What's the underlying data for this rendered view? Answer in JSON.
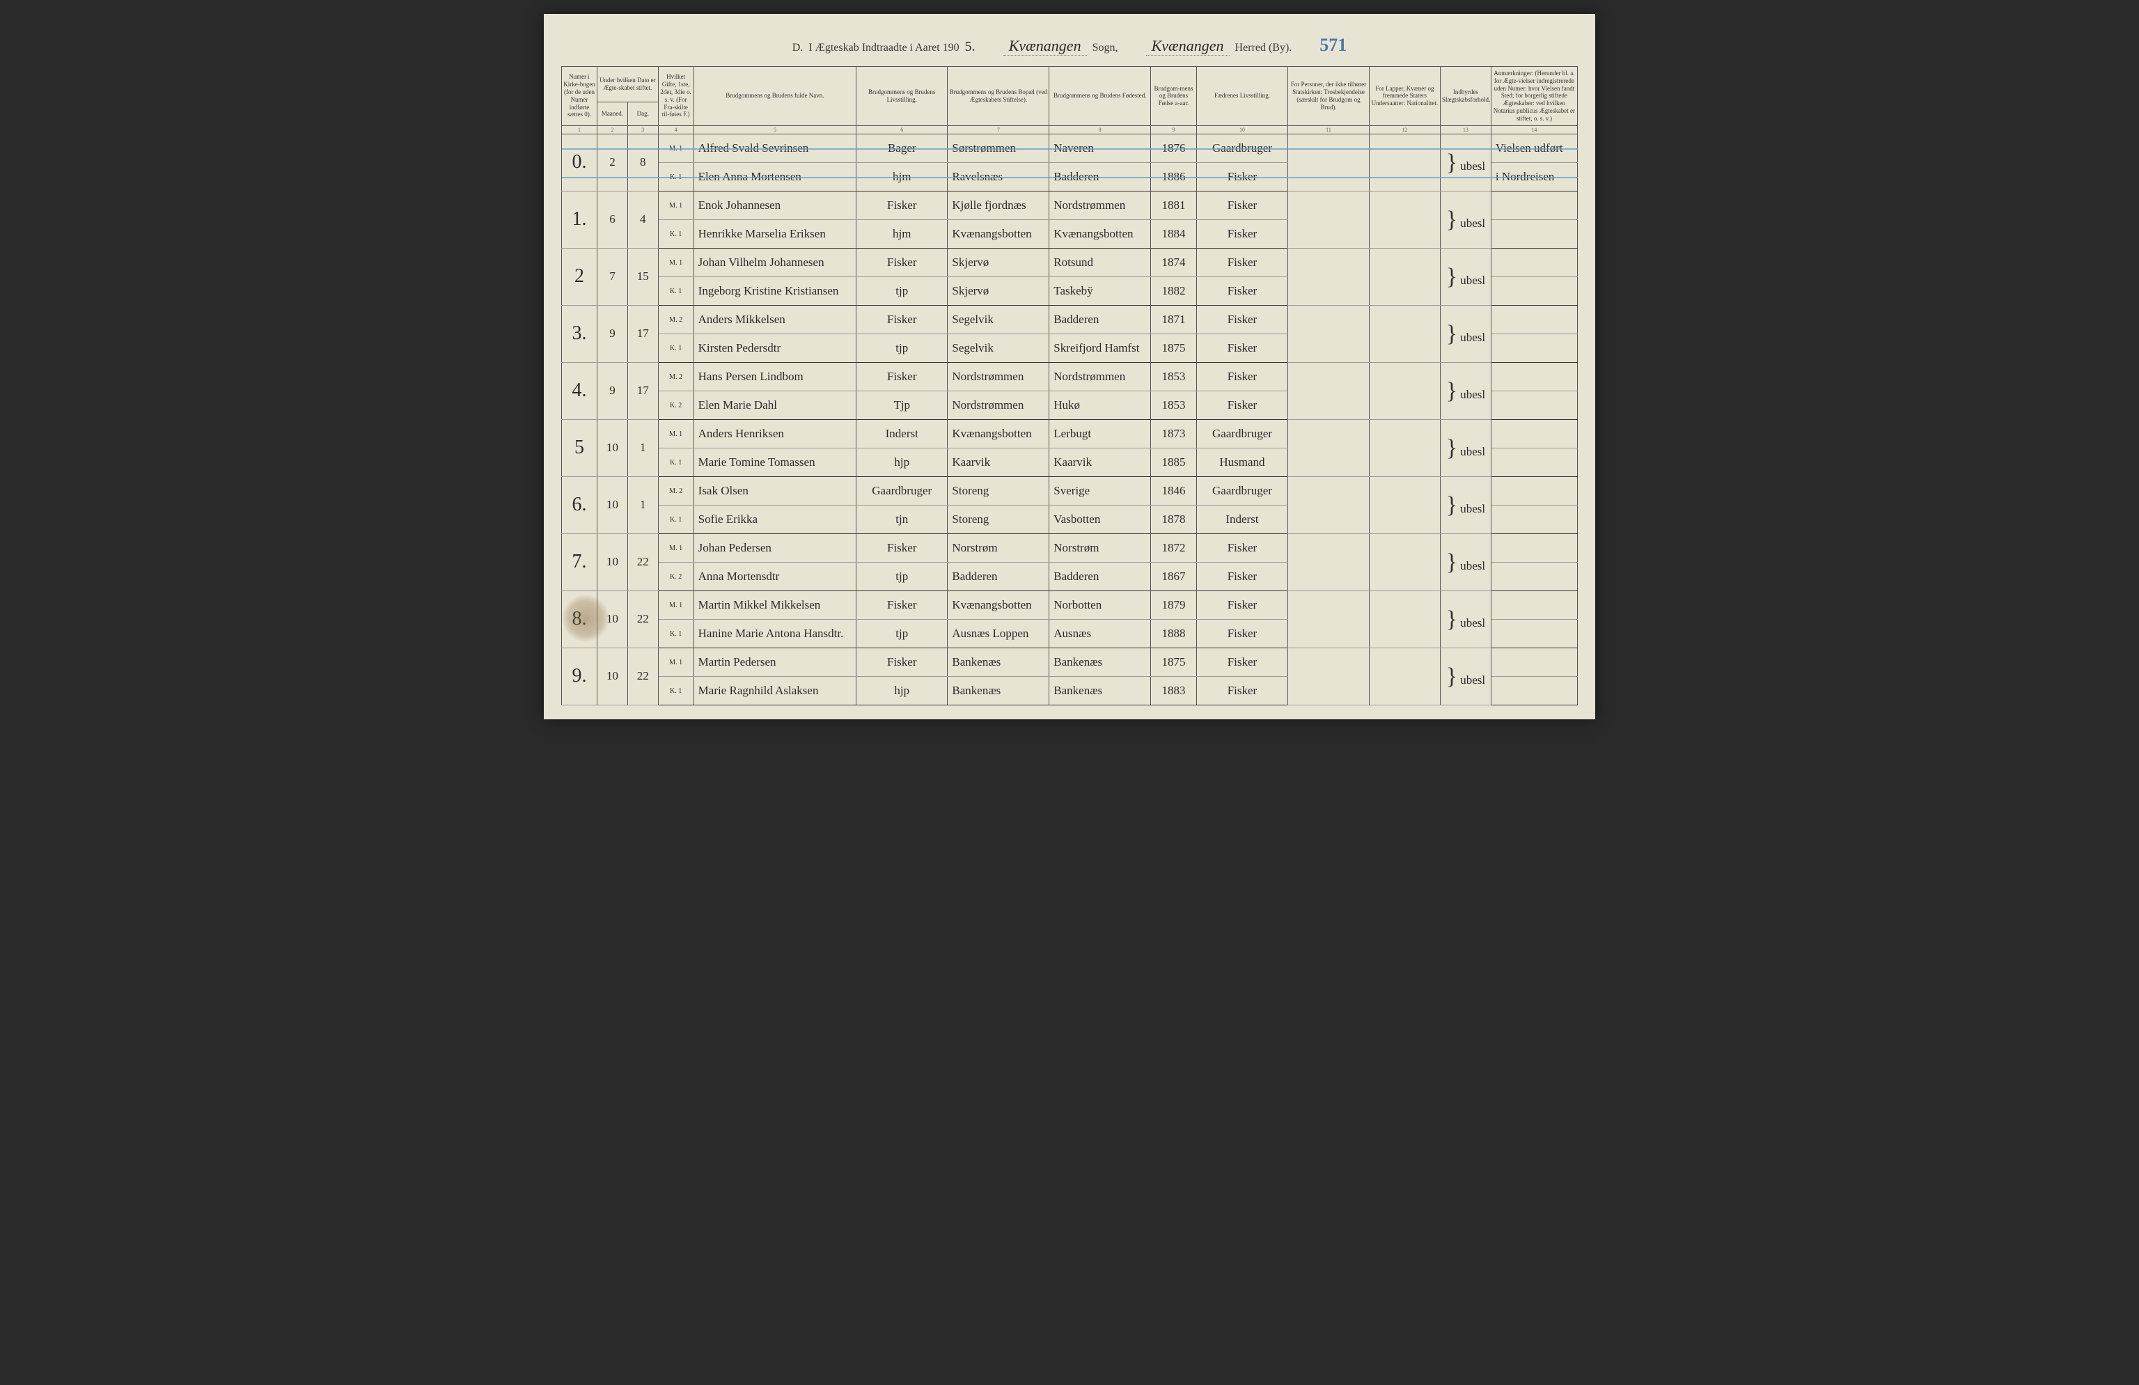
{
  "header": {
    "section_label": "D.",
    "title_prefix": "I Ægteskab Indtraadte i Aaret 190",
    "year_suffix": "5.",
    "sogn_value": "Kvænangen",
    "sogn_label": "Sogn,",
    "herred_value": "Kvænangen",
    "herred_label": "Herred (By).",
    "page_number": "571"
  },
  "columns": {
    "c1": "Numer i Kirke-bogen (for de uden Numer indførte sættes 0).",
    "c2_3": "Under hvilken Dato er Ægte-skabet stiftet.",
    "c2": "Maaned.",
    "c3": "Dag.",
    "c4": "Hvilket Gifte, 1ste, 2det, 3die o. s. v. (For Fra-skilte til-føies F.)",
    "c5": "Brudgommens og Brudens fulde Navn.",
    "c6": "Brudgommens og Brudens Livsstilling.",
    "c7": "Brudgommens og Brudens Bopæl (ved Ægteskabets Stiftelse).",
    "c8": "Brudgommens og Brudens Fødested.",
    "c9": "Brudgom-mens og Brudens Fødse a-aar.",
    "c10": "Fædrenes Livsstilling.",
    "c11": "For Personer, der ikke tilhører Statskirken: Trosbekjendelse (særskilt for Brudgom og Brud).",
    "c12": "For Lapper, Kvæner og fremmede Staters Undersaatter: Nationalitet.",
    "c13": "Indbyrdes Slægtskabsforhold.",
    "c14": "Anmærkninger: (Herunder bl. a. for Ægte-vielser indregistrerede uden Numer: hvor Vielsen fandt Sted; for borgerlig stiftede Ægteskaber: ved hvilken Notarius publicus Ægteskabet er stiftet, o. s. v.)"
  },
  "colnums": [
    "1",
    "2",
    "3",
    "4",
    "5",
    "6",
    "7",
    "8",
    "9",
    "10",
    "11",
    "12",
    "13",
    "14"
  ],
  "entries": [
    {
      "num": "0.",
      "month": "2",
      "day": "8",
      "groom": {
        "mk": "M. 1",
        "name": "Alfred Svald Sevrinsen",
        "occ": "Bager",
        "res": "Sørstrømmen",
        "birth": "Naveren",
        "year": "1876",
        "father": "Gaardbruger"
      },
      "bride": {
        "mk": "K. 1",
        "name": "Elen Anna Mortensen",
        "occ": "hjm",
        "res": "Ravelsnæs",
        "birth": "Badderen",
        "year": "1886",
        "father": "Fisker"
      },
      "rel": "ubesl",
      "note_g": "Vielsen udført",
      "note_b": "i Nordreisen",
      "crossed": true
    },
    {
      "num": "1.",
      "month": "6",
      "day": "4",
      "groom": {
        "mk": "M. 1",
        "name": "Enok Johannesen",
        "occ": "Fisker",
        "res": "Kjølle fjordnæs",
        "birth": "Nordstrømmen",
        "year": "1881",
        "father": "Fisker"
      },
      "bride": {
        "mk": "K. 1",
        "name": "Henrikke Marselia Eriksen",
        "occ": "hjm",
        "res": "Kvænangsbotten",
        "birth": "Kvænangsbotten",
        "year": "1884",
        "father": "Fisker"
      },
      "rel": "ubesl"
    },
    {
      "num": "2",
      "month": "7",
      "day": "15",
      "groom": {
        "mk": "M. 1",
        "name": "Johan Vilhelm Johannesen",
        "occ": "Fisker",
        "res": "Skjervø",
        "birth": "Rotsund",
        "year": "1874",
        "father": "Fisker"
      },
      "bride": {
        "mk": "K. 1",
        "name": "Ingeborg Kristine Kristiansen",
        "occ": "tjp",
        "res": "Skjervø",
        "birth": "Taskebÿ",
        "year": "1882",
        "father": "Fisker"
      },
      "rel": "ubesl"
    },
    {
      "num": "3.",
      "month": "9",
      "day": "17",
      "groom": {
        "mk": "M. 2",
        "name": "Anders Mikkelsen",
        "occ": "Fisker",
        "res": "Segelvik",
        "birth": "Badderen",
        "year": "1871",
        "father": "Fisker"
      },
      "bride": {
        "mk": "K. 1",
        "name": "Kirsten Pedersdtr",
        "occ": "tjp",
        "res": "Segelvik",
        "birth": "Skreifjord Hamfst",
        "year": "1875",
        "father": "Fisker"
      },
      "rel": "ubesl"
    },
    {
      "num": "4.",
      "month": "9",
      "day": "17",
      "groom": {
        "mk": "M. 2",
        "name": "Hans Persen Lindbom",
        "occ": "Fisker",
        "res": "Nordstrømmen",
        "birth": "Nordstrømmen",
        "year": "1853",
        "father": "Fisker"
      },
      "bride": {
        "mk": "K. 2",
        "name": "Elen Marie Dahl",
        "occ": "Tjp",
        "res": "Nordstrømmen",
        "birth": "Hukø",
        "year": "1853",
        "father": "Fisker"
      },
      "rel": "ubesl"
    },
    {
      "num": "5",
      "month": "10",
      "day": "1",
      "groom": {
        "mk": "M. 1",
        "name": "Anders Henriksen",
        "occ": "Inderst",
        "res": "Kvænangsbotten",
        "birth": "Lerbugt",
        "year": "1873",
        "father": "Gaardbruger"
      },
      "bride": {
        "mk": "K. 1",
        "name": "Marie Tomine Tomassen",
        "occ": "hjp",
        "res": "Kaarvik",
        "birth": "Kaarvik",
        "year": "1885",
        "father": "Husmand"
      },
      "rel": "ubesl"
    },
    {
      "num": "6.",
      "month": "10",
      "day": "1",
      "groom": {
        "mk": "M. 2",
        "name": "Isak Olsen",
        "occ": "Gaardbruger",
        "res": "Storeng",
        "birth": "Sverige",
        "year": "1846",
        "father": "Gaardbruger"
      },
      "bride": {
        "mk": "K. 1",
        "name": "Sofie Erikka",
        "occ": "tjn",
        "res": "Storeng",
        "birth": "Vasbotten",
        "year": "1878",
        "father": "Inderst"
      },
      "rel": "ubesl"
    },
    {
      "num": "7.",
      "month": "10",
      "day": "22",
      "groom": {
        "mk": "M. 1",
        "name": "Johan Pedersen",
        "occ": "Fisker",
        "res": "Norstrøm",
        "birth": "Norstrøm",
        "year": "1872",
        "father": "Fisker"
      },
      "bride": {
        "mk": "K. 2",
        "name": "Anna Mortensdtr",
        "occ": "tjp",
        "res": "Badderen",
        "birth": "Badderen",
        "year": "1867",
        "father": "Fisker"
      },
      "rel": "ubesl"
    },
    {
      "num": "8.",
      "month": "10",
      "day": "22",
      "groom": {
        "mk": "M. 1",
        "name": "Martin Mikkel Mikkelsen",
        "occ": "Fisker",
        "res": "Kvænangsbotten",
        "birth": "Norbotten",
        "year": "1879",
        "father": "Fisker"
      },
      "bride": {
        "mk": "K. 1",
        "name": "Hanine Marie Antona Hansdtr.",
        "occ": "tjp",
        "res": "Ausnæs Loppen",
        "birth": "Ausnæs",
        "year": "1888",
        "father": "Fisker"
      },
      "rel": "ubesl"
    },
    {
      "num": "9.",
      "month": "10",
      "day": "22",
      "groom": {
        "mk": "M. 1",
        "name": "Martin Pedersen",
        "occ": "Fisker",
        "res": "Bankenæs",
        "birth": "Bankenæs",
        "year": "1875",
        "father": "Fisker"
      },
      "bride": {
        "mk": "K. 1",
        "name": "Marie Ragnhild Aslaksen",
        "occ": "hjp",
        "res": "Bankenæs",
        "birth": "Bankenæs",
        "year": "1883",
        "father": "Fisker"
      },
      "rel": "ubesl"
    }
  ],
  "style": {
    "page_bg": "#e8e4d4",
    "ink": "#2a2a2a",
    "blue_pencil": "#5a9bc4",
    "border": "#555555"
  }
}
